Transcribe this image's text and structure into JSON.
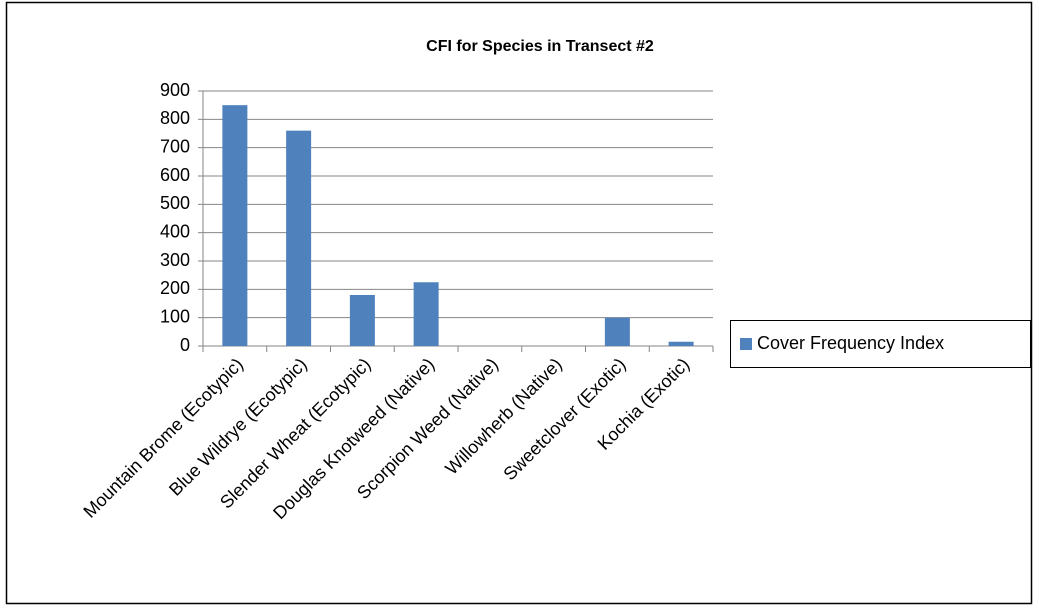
{
  "chart_data": {
    "type": "bar",
    "title": "CFI for Species in Transect #2",
    "categories": [
      "Mountain Brome (Ecotypic)",
      "Blue Wildrye (Ecotypic)",
      "Slender Wheat (Ecotypic)",
      "Douglas Knotweed (Native)",
      "Scorpion Weed (Native)",
      "Willowherb (Native)",
      "Sweetclover (Exotic)",
      "Kochia (Exotic)"
    ],
    "series": [
      {
        "name": "Cover Frequency Index",
        "color": "#4f81bd",
        "values": [
          850,
          760,
          180,
          225,
          0,
          0,
          100,
          15
        ]
      }
    ],
    "ylim": [
      0,
      900
    ],
    "yticks": [
      0,
      100,
      200,
      300,
      400,
      500,
      600,
      700,
      800,
      900
    ],
    "grid": true,
    "legend": "right"
  }
}
